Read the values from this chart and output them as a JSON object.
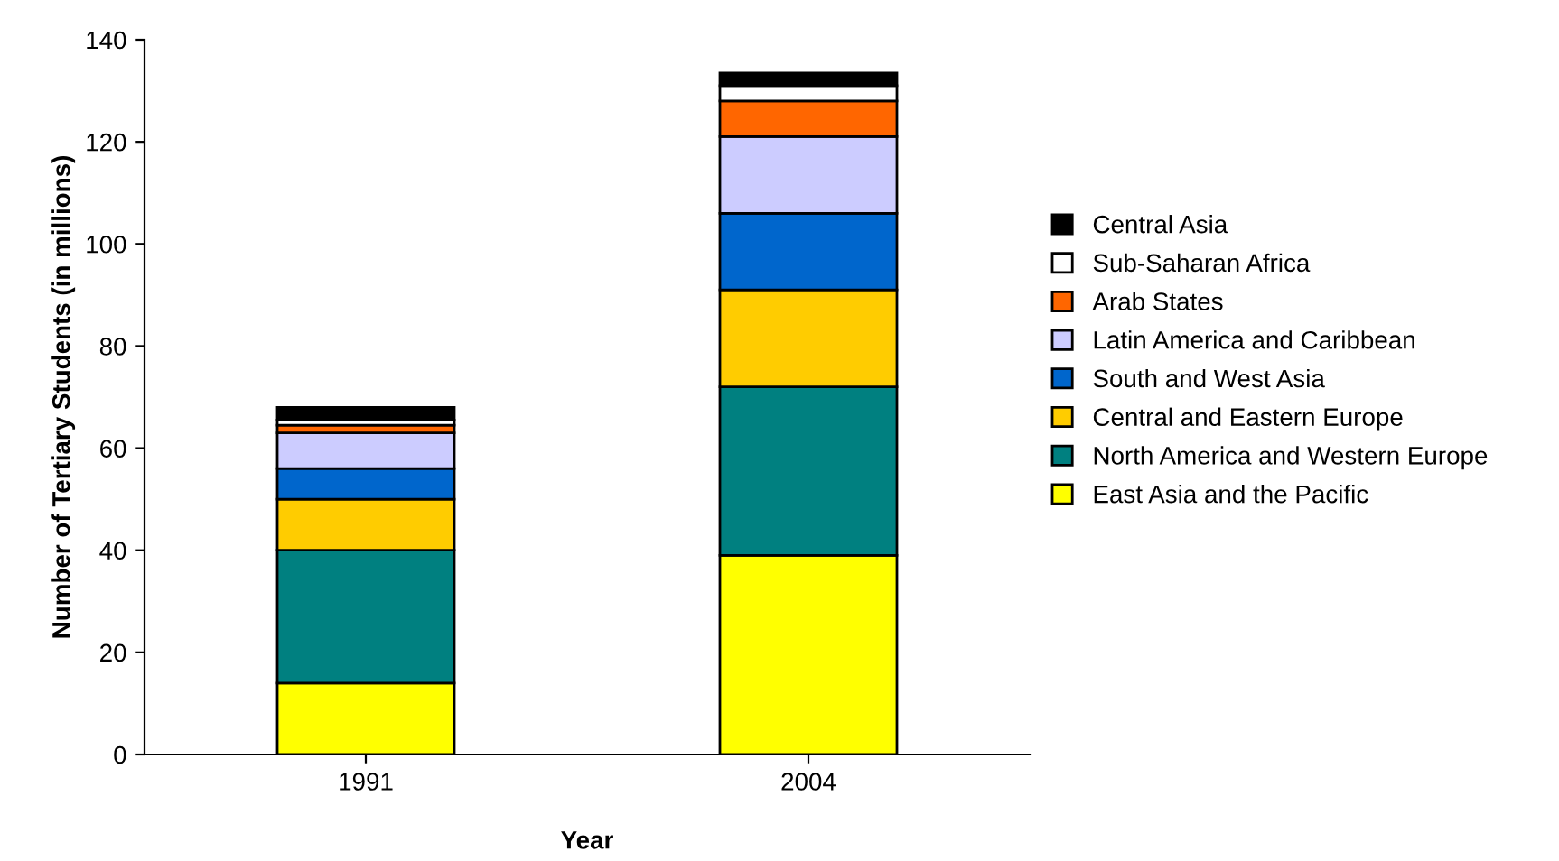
{
  "chart_data": {
    "type": "bar",
    "stacked": true,
    "xlabel": "Year",
    "ylabel": "Number of Tertiary Students (in millions)",
    "categories": [
      "1991",
      "2004"
    ],
    "series": [
      {
        "name": "East Asia and the Pacific",
        "color": "#ffff00",
        "values": [
          14,
          39
        ]
      },
      {
        "name": "North America and Western Europe",
        "color": "#008080",
        "values": [
          26,
          33
        ]
      },
      {
        "name": "Central and Eastern Europe",
        "color": "#ffcc00",
        "values": [
          10,
          19
        ]
      },
      {
        "name": "South and West Asia",
        "color": "#0066cc",
        "values": [
          6,
          15
        ]
      },
      {
        "name": "Latin America and Caribbean",
        "color": "#ccccff",
        "values": [
          7,
          15
        ]
      },
      {
        "name": "Arab States",
        "color": "#ff6600",
        "values": [
          1.5,
          7
        ]
      },
      {
        "name": "Sub-Saharan Africa",
        "color": "#ffffff",
        "values": [
          1,
          3
        ]
      },
      {
        "name": "Central Asia",
        "color": "#000000",
        "values": [
          2.5,
          2.5
        ]
      }
    ],
    "ylim": [
      0,
      140
    ],
    "yticks": [
      0,
      20,
      40,
      60,
      80,
      100,
      120,
      140
    ],
    "grid": false,
    "legend": "right"
  }
}
